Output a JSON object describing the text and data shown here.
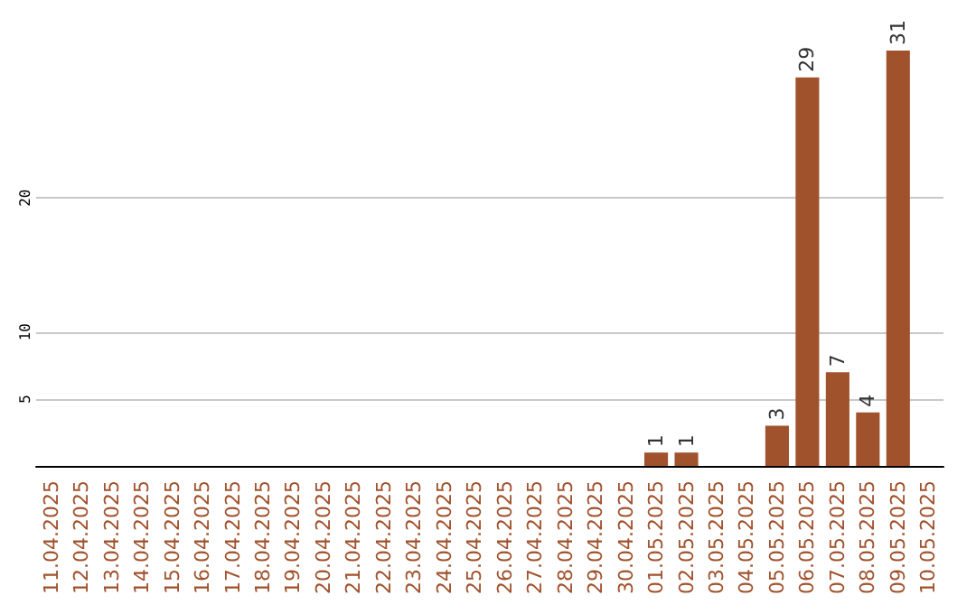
{
  "chart_data": {
    "type": "bar",
    "categories": [
      "11.04.2025",
      "12.04.2025",
      "13.04.2025",
      "14.04.2025",
      "15.04.2025",
      "16.04.2025",
      "17.04.2025",
      "18.04.2025",
      "19.04.2025",
      "20.04.2025",
      "21.04.2025",
      "22.04.2025",
      "23.04.2025",
      "24.04.2025",
      "25.04.2025",
      "26.04.2025",
      "27.04.2025",
      "28.04.2025",
      "29.04.2025",
      "30.04.2025",
      "01.05.2025",
      "02.05.2025",
      "03.05.2025",
      "04.05.2025",
      "05.05.2025",
      "06.05.2025",
      "07.05.2025",
      "08.05.2025",
      "09.05.2025",
      "10.05.2025"
    ],
    "values": [
      0,
      0,
      0,
      0,
      0,
      0,
      0,
      0,
      0,
      0,
      0,
      0,
      0,
      0,
      0,
      0,
      0,
      0,
      0,
      0,
      1,
      1,
      0,
      0,
      3,
      29,
      7,
      4,
      31,
      0
    ],
    "value_labels": [
      null,
      null,
      null,
      null,
      null,
      null,
      null,
      null,
      null,
      null,
      null,
      null,
      null,
      null,
      null,
      null,
      null,
      null,
      null,
      null,
      "1",
      "1",
      null,
      null,
      "3",
      "29",
      "7",
      "4",
      "31",
      null
    ],
    "color": "#a0522d",
    "ylim": [
      0,
      31
    ],
    "yticks": [
      5,
      10,
      20
    ],
    "grid": "y"
  }
}
